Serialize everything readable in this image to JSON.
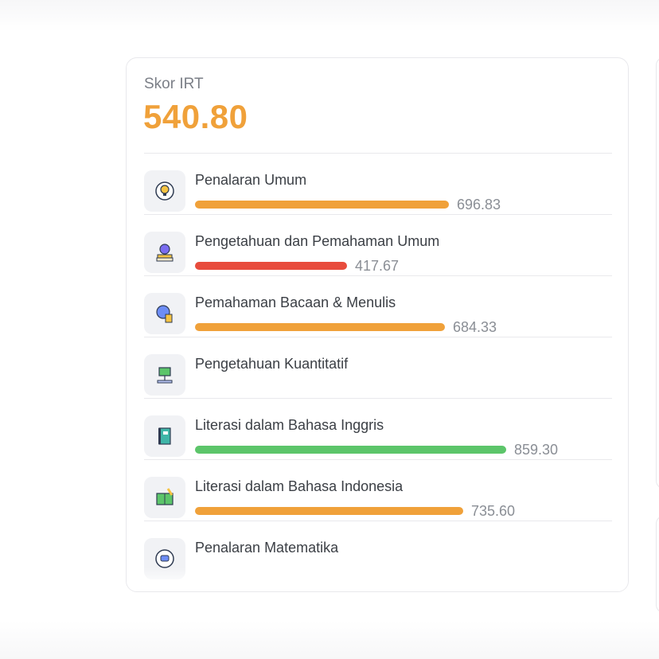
{
  "summary": {
    "label": "Skor IRT",
    "score": "540.80"
  },
  "colors": {
    "orange": "#f0a13a",
    "red": "#e84c3d",
    "green": "#5cc56a"
  },
  "subtests": [
    {
      "name": "Penalaran Umum",
      "value": "696.83",
      "fill_fraction": 0.7,
      "color": "#f0a13a",
      "icon": "lightbulb-head-icon"
    },
    {
      "name": "Pengetahuan dan Pemahaman Umum",
      "value": "417.67",
      "fill_fraction": 0.42,
      "color": "#e84c3d",
      "icon": "apple-books-icon"
    },
    {
      "name": "Pemahaman Bacaan & Menulis",
      "value": "684.33",
      "fill_fraction": 0.69,
      "color": "#f0a13a",
      "icon": "globe-books-icon"
    },
    {
      "name": "Pengetahuan Kuantitatif",
      "value": "",
      "fill_fraction": 0,
      "color": "#f0a13a",
      "icon": "presentation-board-icon"
    },
    {
      "name": "Literasi dalam Bahasa Inggris",
      "value": "859.30",
      "fill_fraction": 0.86,
      "color": "#5cc56a",
      "icon": "book-icon"
    },
    {
      "name": "Literasi dalam Bahasa Indonesia",
      "value": "735.60",
      "fill_fraction": 0.74,
      "color": "#f0a13a",
      "icon": "open-book-pencil-icon"
    },
    {
      "name": "Penalaran Matematika",
      "value": "",
      "fill_fraction": 0,
      "color": "#f0a13a",
      "icon": "brain-head-icon"
    }
  ]
}
